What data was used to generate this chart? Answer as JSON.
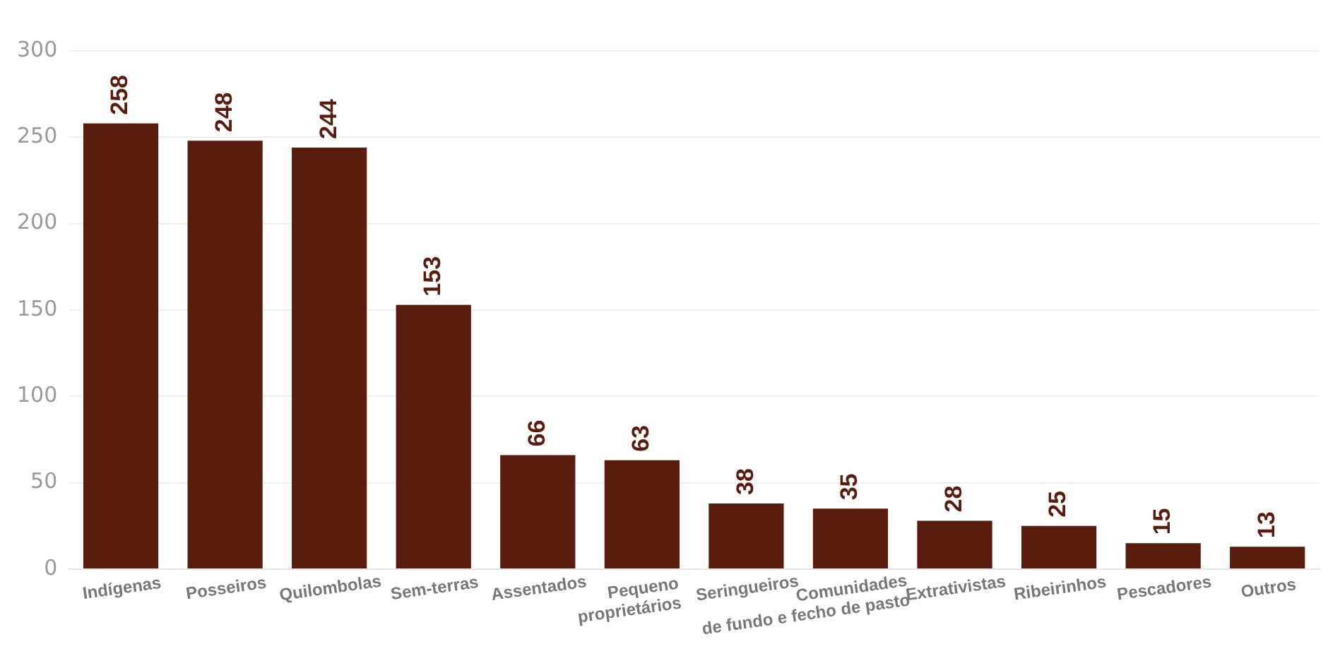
{
  "chart_data": {
    "type": "bar",
    "categories": [
      "Indígenas",
      "Posseiros",
      "Quilombolas",
      "Sem-terras",
      "Assentados",
      "Pequeno proprietários",
      "Seringueiros",
      "Comunidades de fundo e fecho de pasto",
      "Extrativistas",
      "Ribeirinhos",
      "Pescadores",
      "Outros"
    ],
    "values": [
      258,
      248,
      244,
      153,
      66,
      63,
      38,
      35,
      28,
      25,
      15,
      13
    ],
    "color": "#5a1c0e",
    "ylim": [
      0,
      300
    ],
    "yticks": [
      0,
      50,
      100,
      150,
      200,
      250,
      300
    ],
    "grid": "y",
    "data_labels": true,
    "legend": false
  }
}
